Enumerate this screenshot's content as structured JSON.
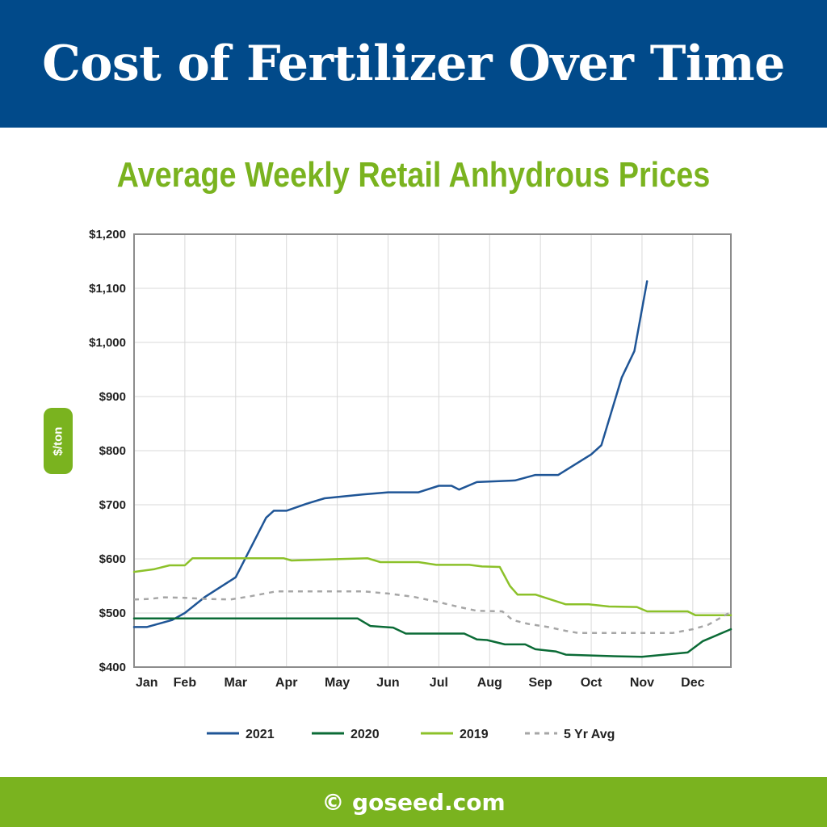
{
  "header": {
    "title": "Cost of Fertilizer Over Time"
  },
  "footer": {
    "text": "© goseed.com"
  },
  "colors": {
    "banner": "#014a8a",
    "accent": "#7ab31f",
    "footer": "#7ab31f"
  },
  "chart_data": {
    "type": "line",
    "title": "Average Weekly Retail Anhydrous Prices",
    "ylabel": "$/ton",
    "xlabel": "",
    "ylim": [
      400,
      1200
    ],
    "yticks": [
      400,
      500,
      600,
      700,
      800,
      900,
      1000,
      1100,
      1200
    ],
    "ytick_labels": [
      "$400",
      "$500",
      "$600",
      "$700",
      "$800",
      "$900",
      "$1,000",
      "$1,100",
      "$1,200"
    ],
    "xlim": [
      0,
      11.75
    ],
    "categories": [
      "Jan",
      "Feb",
      "Mar",
      "Apr",
      "May",
      "Jun",
      "Jul",
      "Aug",
      "Sep",
      "Oct",
      "Nov",
      "Dec"
    ],
    "grid": true,
    "legend_position": "bottom",
    "series": [
      {
        "name": "2021",
        "color": "#1f5596",
        "dashed": false,
        "points": [
          [
            0,
            474
          ],
          [
            0.25,
            474
          ],
          [
            0.75,
            487
          ],
          [
            1,
            500
          ],
          [
            1.4,
            530
          ],
          [
            2,
            566
          ],
          [
            2.6,
            676
          ],
          [
            2.75,
            689
          ],
          [
            3,
            689
          ],
          [
            3.4,
            702
          ],
          [
            3.75,
            712
          ],
          [
            4.5,
            719
          ],
          [
            5,
            723
          ],
          [
            5.6,
            723
          ],
          [
            6,
            735
          ],
          [
            6.25,
            735
          ],
          [
            6.4,
            728
          ],
          [
            6.75,
            742
          ],
          [
            7.5,
            745
          ],
          [
            7.9,
            755
          ],
          [
            8.35,
            755
          ],
          [
            9,
            793
          ],
          [
            9.2,
            810
          ],
          [
            9.6,
            935
          ],
          [
            9.85,
            984
          ],
          [
            10.1,
            1113
          ]
        ]
      },
      {
        "name": "2020",
        "color": "#0b6b36",
        "dashed": false,
        "points": [
          [
            0,
            490
          ],
          [
            4.4,
            490
          ],
          [
            4.65,
            476
          ],
          [
            5.1,
            473
          ],
          [
            5.35,
            462
          ],
          [
            6.5,
            462
          ],
          [
            6.75,
            451
          ],
          [
            6.95,
            450
          ],
          [
            7.3,
            442
          ],
          [
            7.7,
            442
          ],
          [
            7.9,
            433
          ],
          [
            8.3,
            429
          ],
          [
            8.5,
            423
          ],
          [
            9.5,
            420
          ],
          [
            10,
            419
          ],
          [
            10.9,
            427
          ],
          [
            11.2,
            448
          ],
          [
            11.75,
            470
          ]
        ]
      },
      {
        "name": "2019",
        "color": "#8cc12a",
        "dashed": false,
        "points": [
          [
            0,
            576
          ],
          [
            0.4,
            581
          ],
          [
            0.7,
            588
          ],
          [
            1,
            588
          ],
          [
            1.15,
            601
          ],
          [
            2.95,
            601
          ],
          [
            3.1,
            597
          ],
          [
            4.6,
            601
          ],
          [
            4.85,
            594
          ],
          [
            5.6,
            594
          ],
          [
            5.95,
            589
          ],
          [
            6.6,
            589
          ],
          [
            6.85,
            586
          ],
          [
            7.2,
            585
          ],
          [
            7.4,
            550
          ],
          [
            7.55,
            534
          ],
          [
            7.9,
            534
          ],
          [
            8.5,
            516
          ],
          [
            8.95,
            516
          ],
          [
            9.35,
            512
          ],
          [
            9.9,
            511
          ],
          [
            10.1,
            503
          ],
          [
            10.9,
            503
          ],
          [
            11.05,
            496
          ],
          [
            11.75,
            496
          ]
        ]
      },
      {
        "name": "5 Yr Avg",
        "color": "#a6a6a6",
        "dashed": true,
        "points": [
          [
            0,
            525
          ],
          [
            0.3,
            526
          ],
          [
            0.6,
            529
          ],
          [
            1,
            528
          ],
          [
            1.4,
            526
          ],
          [
            1.9,
            525
          ],
          [
            2.3,
            531
          ],
          [
            2.8,
            540
          ],
          [
            3.3,
            540
          ],
          [
            4,
            540
          ],
          [
            4.5,
            540
          ],
          [
            5,
            536
          ],
          [
            5.5,
            530
          ],
          [
            6,
            520
          ],
          [
            6.4,
            511
          ],
          [
            6.75,
            504
          ],
          [
            7.25,
            503
          ],
          [
            7.45,
            487
          ],
          [
            7.75,
            480
          ],
          [
            8.15,
            474
          ],
          [
            8.5,
            467
          ],
          [
            8.75,
            463
          ],
          [
            9.5,
            463
          ],
          [
            10,
            463
          ],
          [
            10.6,
            463
          ],
          [
            11,
            470
          ],
          [
            11.3,
            478
          ],
          [
            11.75,
            502
          ]
        ]
      }
    ]
  }
}
